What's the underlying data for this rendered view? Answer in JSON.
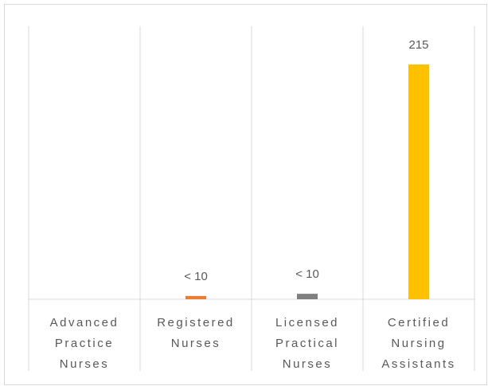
{
  "chart_data": {
    "type": "bar",
    "categories": [
      "Advanced Practice Nurses",
      "Registered Nurses",
      "Licensed Practical Nurses",
      "Certified Nursing Assistants"
    ],
    "values": [
      0,
      3,
      5,
      215
    ],
    "value_labels": [
      null,
      "< 10",
      "< 10",
      "215"
    ],
    "colors": [
      "#4472c4",
      "#ed7d31",
      "#7f7f7f",
      "#ffc000"
    ],
    "ylim": [
      0,
      250
    ]
  }
}
